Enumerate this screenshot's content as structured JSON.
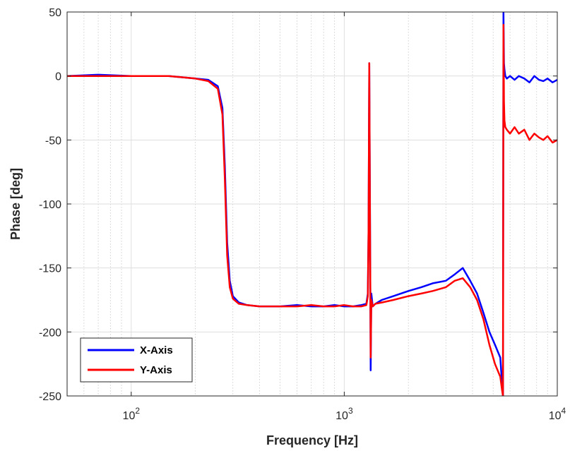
{
  "chart_data": {
    "type": "line",
    "title": "",
    "xlabel": "Frequency [Hz]",
    "ylabel": "Phase [deg]",
    "xscale": "log",
    "xlim": [
      50,
      10000
    ],
    "ylim": [
      -250,
      50
    ],
    "grid": true,
    "minor_grid": true,
    "legend_position": "bottom-left",
    "x_ticks": [
      {
        "value": 100,
        "base": "10",
        "exp": "2"
      },
      {
        "value": 1000,
        "base": "10",
        "exp": "3"
      },
      {
        "value": 10000,
        "base": "10",
        "exp": "4"
      }
    ],
    "y_ticks": [
      {
        "value": 50,
        "label": "50"
      },
      {
        "value": 0,
        "label": "0"
      },
      {
        "value": -50,
        "label": "-50"
      },
      {
        "value": -100,
        "label": "-100"
      },
      {
        "value": -150,
        "label": "-150"
      },
      {
        "value": -200,
        "label": "-200"
      },
      {
        "value": -250,
        "label": "-250"
      }
    ],
    "series": [
      {
        "name": "X-Axis",
        "color": "#0000ff",
        "x": [
          50,
          70,
          100,
          150,
          200,
          230,
          255,
          268,
          275,
          282,
          290,
          300,
          320,
          350,
          400,
          500,
          600,
          700,
          800,
          900,
          1000,
          1100,
          1200,
          1270,
          1290,
          1300,
          1310,
          1320,
          1330,
          1340,
          1360,
          1400,
          1500,
          1700,
          2000,
          2300,
          2600,
          3000,
          3300,
          3600,
          3900,
          4200,
          4500,
          4800,
          5100,
          5400,
          5500,
          5560,
          5590,
          5620,
          5650,
          5700,
          5800,
          6000,
          6300,
          6600,
          7000,
          7400,
          7800,
          8200,
          8600,
          9000,
          9500,
          10000
        ],
        "y": [
          0,
          1,
          0,
          0,
          -2,
          -3,
          -8,
          -25,
          -70,
          -130,
          -160,
          -172,
          -177,
          -179,
          -180,
          -180,
          -179,
          -180,
          -180,
          -179,
          -180,
          -180,
          -179,
          -178,
          -170,
          -120,
          10,
          -100,
          -230,
          -170,
          -180,
          -178,
          -175,
          -172,
          -168,
          -165,
          -162,
          -160,
          -155,
          -150,
          -160,
          -170,
          -185,
          -200,
          -210,
          -220,
          -240,
          -250,
          50,
          10,
          5,
          0,
          -2,
          0,
          -3,
          0,
          -2,
          -5,
          0,
          -3,
          -4,
          -2,
          -5,
          -3
        ]
      },
      {
        "name": "Y-Axis",
        "color": "#ff0000",
        "x": [
          50,
          70,
          100,
          150,
          200,
          230,
          255,
          268,
          275,
          282,
          290,
          300,
          320,
          350,
          400,
          500,
          600,
          700,
          800,
          900,
          1000,
          1100,
          1200,
          1270,
          1290,
          1300,
          1310,
          1320,
          1330,
          1340,
          1360,
          1400,
          1500,
          1700,
          2000,
          2300,
          2600,
          3000,
          3300,
          3600,
          3900,
          4200,
          4500,
          4800,
          5100,
          5400,
          5500,
          5560,
          5590,
          5620,
          5650,
          5700,
          5800,
          6000,
          6300,
          6600,
          7000,
          7400,
          7800,
          8200,
          8600,
          9000,
          9500,
          10000
        ],
        "y": [
          0,
          0,
          0,
          0,
          -2,
          -4,
          -10,
          -30,
          -80,
          -140,
          -165,
          -174,
          -178,
          -179,
          -180,
          -180,
          -180,
          -179,
          -180,
          -180,
          -179,
          -180,
          -180,
          -179,
          -172,
          -120,
          10,
          -110,
          -220,
          -175,
          -180,
          -178,
          -177,
          -175,
          -172,
          -170,
          -168,
          -165,
          -160,
          -158,
          -165,
          -175,
          -190,
          -210,
          -225,
          -235,
          -245,
          -250,
          40,
          -20,
          -35,
          -40,
          -42,
          -45,
          -40,
          -45,
          -42,
          -50,
          -45,
          -48,
          -50,
          -47,
          -52,
          -50
        ]
      }
    ],
    "legend": [
      {
        "label": "X-Axis",
        "color": "#0000ff"
      },
      {
        "label": "Y-Axis",
        "color": "#ff0000"
      }
    ]
  }
}
